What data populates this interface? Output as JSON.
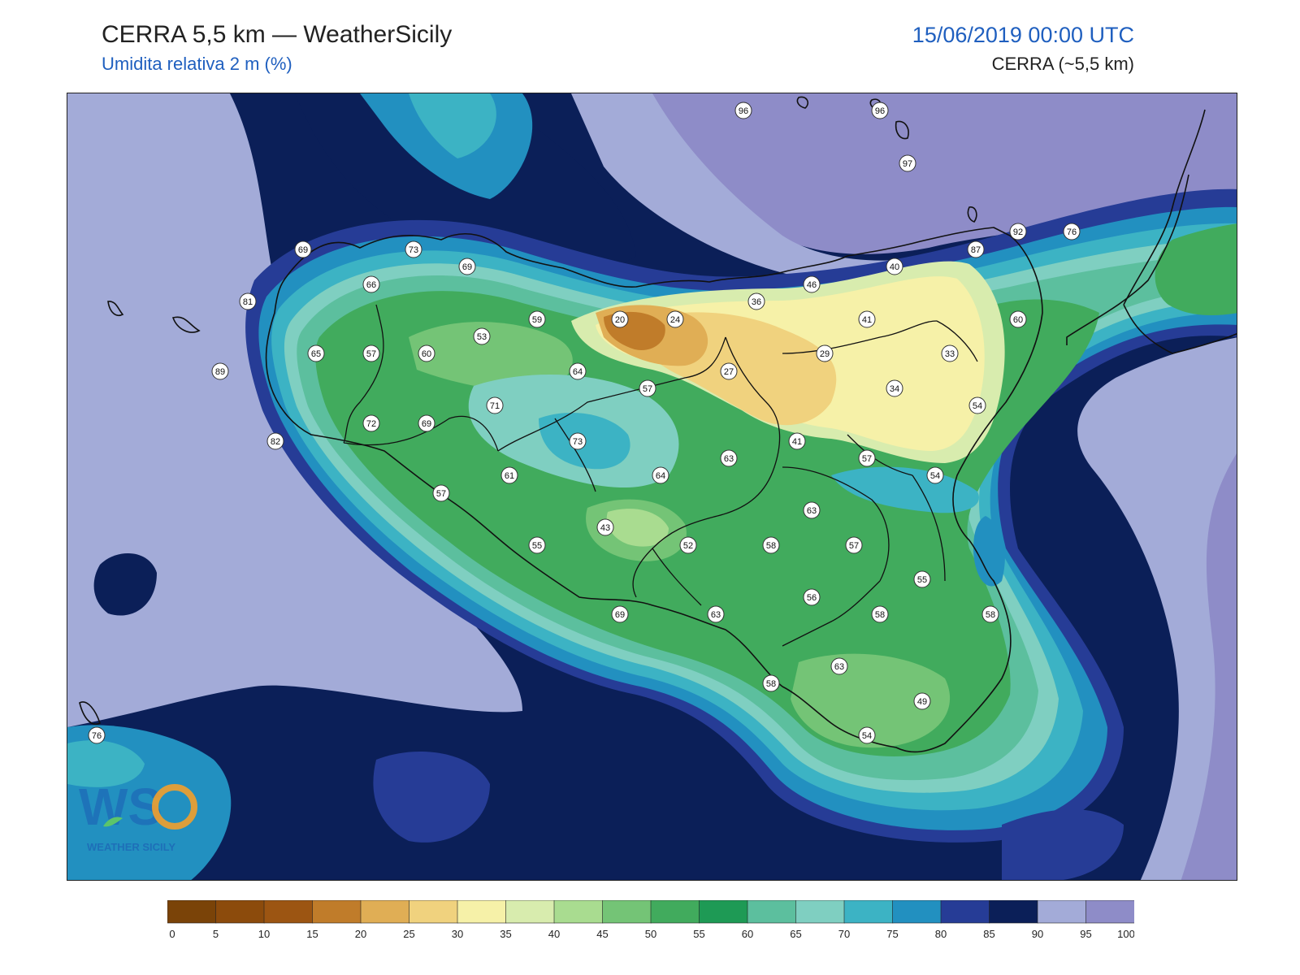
{
  "header": {
    "title": "CERRA 5,5 km — WeatherSicily",
    "subtitle": "Umidita relativa 2 m (%)",
    "datetime": "15/06/2019 00:00 UTC",
    "model": "CERRA (~5,5 km)"
  },
  "logo": {
    "text": "WEATHER SICILY",
    "icon": "ws-logo-icon"
  },
  "colorbar": {
    "ticks": [
      "0",
      "5",
      "10",
      "15",
      "20",
      "25",
      "30",
      "35",
      "40",
      "45",
      "50",
      "55",
      "60",
      "65",
      "70",
      "75",
      "80",
      "85",
      "90",
      "95",
      "100"
    ],
    "colors": [
      "#7a4308",
      "#8c4b0c",
      "#9c5512",
      "#c07c2a",
      "#e0ae55",
      "#f0d27e",
      "#f6f1a8",
      "#d8ecae",
      "#a9dc90",
      "#74c476",
      "#41ab5d",
      "#1e9a55",
      "#5cbf9e",
      "#7fcfc1",
      "#3cb3c4",
      "#2290c0",
      "#263c96",
      "#0b1f58",
      "#a3abd8",
      "#8e8cc8"
    ]
  },
  "colors": {
    "sea_near": "#2290c0",
    "sea_deep": "#0b1f58",
    "sea_blue": "#263c96",
    "far_light": "#a3abd8",
    "far_purple": "#8e8cc8",
    "coast_teal": "#3cb3c4",
    "inland_green": "#41ab5d",
    "dry_yellow": "#f6f1a8",
    "dry_orange": "#e0ae55",
    "dry_brown": "#c07c2a"
  },
  "stations": [
    {
      "label": "96"
    },
    {
      "label": "96"
    },
    {
      "label": "97"
    },
    {
      "label": "92"
    },
    {
      "label": "76"
    },
    {
      "label": "87"
    },
    {
      "label": "69"
    },
    {
      "label": "73"
    },
    {
      "label": "69"
    },
    {
      "label": "66"
    },
    {
      "label": "81"
    },
    {
      "label": "40"
    },
    {
      "label": "46"
    },
    {
      "label": "36"
    },
    {
      "label": "41"
    },
    {
      "label": "60"
    },
    {
      "label": "20"
    },
    {
      "label": "24"
    },
    {
      "label": "59"
    },
    {
      "label": "53"
    },
    {
      "label": "65"
    },
    {
      "label": "57"
    },
    {
      "label": "60"
    },
    {
      "label": "89"
    },
    {
      "label": "33"
    },
    {
      "label": "29"
    },
    {
      "label": "27"
    },
    {
      "label": "64"
    },
    {
      "label": "34"
    },
    {
      "label": "57"
    },
    {
      "label": "54"
    },
    {
      "label": "71"
    },
    {
      "label": "72"
    },
    {
      "label": "69"
    },
    {
      "label": "82"
    },
    {
      "label": "41"
    },
    {
      "label": "73"
    },
    {
      "label": "63"
    },
    {
      "label": "57"
    },
    {
      "label": "61"
    },
    {
      "label": "64"
    },
    {
      "label": "54"
    },
    {
      "label": "57"
    },
    {
      "label": "63"
    },
    {
      "label": "43"
    },
    {
      "label": "52"
    },
    {
      "label": "58"
    },
    {
      "label": "57"
    },
    {
      "label": "55"
    },
    {
      "label": "55"
    },
    {
      "label": "56"
    },
    {
      "label": "69"
    },
    {
      "label": "63"
    },
    {
      "label": "58"
    },
    {
      "label": "58"
    },
    {
      "label": "63"
    },
    {
      "label": "58"
    },
    {
      "label": "49"
    },
    {
      "label": "76"
    },
    {
      "label": "54"
    }
  ]
}
